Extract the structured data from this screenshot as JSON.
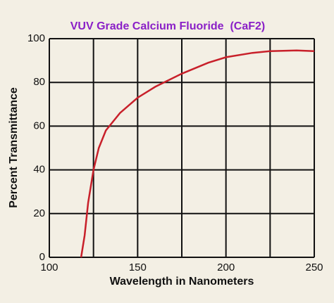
{
  "chart_data": {
    "type": "line",
    "title": "VUV Grade Calcium Fluoride  (CaF2)",
    "xlabel": "Wavelength in Nanometers",
    "ylabel": "Percent Transmittance",
    "x": [
      118,
      120,
      122,
      125,
      128,
      132,
      140,
      150,
      160,
      175,
      190,
      200,
      215,
      225,
      240,
      250
    ],
    "values": [
      0,
      10,
      25,
      40,
      50,
      58,
      66,
      73,
      78,
      84,
      89,
      91.5,
      93.5,
      94.3,
      94.6,
      94.3
    ],
    "color": "#c8202a",
    "xlim": [
      100,
      250
    ],
    "xticks": [
      100,
      150,
      200,
      250
    ],
    "xgrid_extra": [
      125,
      175,
      225
    ],
    "ylim": [
      0,
      100
    ],
    "yticks": [
      0,
      20,
      40,
      60,
      80,
      100
    ],
    "grid": true
  }
}
